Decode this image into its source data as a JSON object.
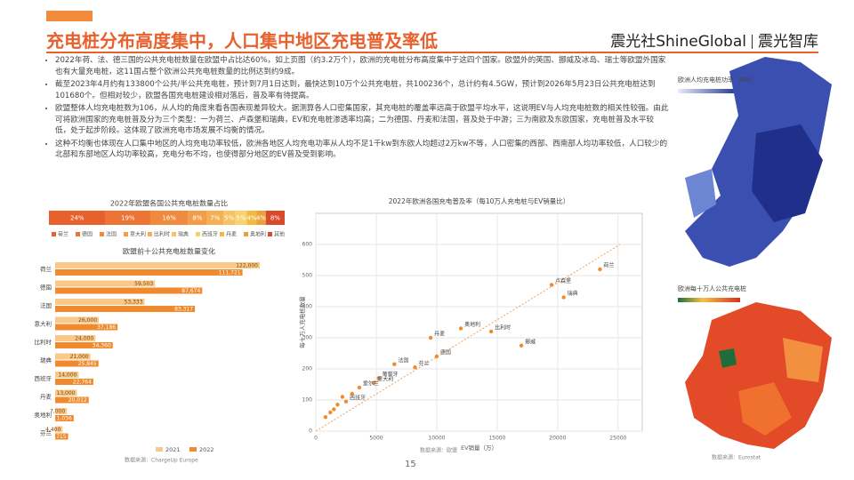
{
  "header": {
    "title": "充电桩分布高度集中，人口集中地区充电普及率低",
    "brand": "震光社ShineGlobal",
    "brand_sub": "震光智库"
  },
  "bullets": [
    "2022年荷、法、德三国的公共充电桩数量在欧盟中占比达60%，如上页图（约3.2万个），欧洲的充电桩分布高度集中于这四个国家。欧盟外的英国、挪威及冰岛、瑞士等欧盟外国家也有大量充电桩，这11国占整个欧洲公共充电桩数量的比例达到约9成。",
    "截至2023年4月约有133800个公共/半公共充电桩，预计到7月1日达到，最快达到10万个公共充电桩，共100236个，总计约有4.5GW，预计到2026年5月23日公共充电桩达到101680个。但相对较少，欧盟各国充电桩建设相对落后，普及率有待提高。",
    "欧盟整体人均充电桩数为106，从人均的角度来看各国表现差异较大。据测算各人口密集国家，其充电桩的覆盖率远高于欧盟平均水平，这说明EV与人均充电桩数的相关性较强。由此可将欧洲国家的充电桩普及分为三个类型：一为荷兰、卢森堡和瑞典，EV和充电桩渗透率均高；二为德国、丹麦和法国，普及处于中游；三为南欧及东欧国家，充电桩普及水平较低，处于起步阶段。这体现了欧洲充电市场发展不均衡的情况。",
    "这种不均衡也体现在人口集中地区的人均充电功率较低，欧洲各地区人均充电功率从人均不足1千kw到东欧人均超过2万kw不等，人口密集的西部、西南部人均功率较低，人口较少的北部和东部地区人均功率较高，充电分布不均，也使得部分地区的EV普及受到影响。"
  ],
  "share_chart": {
    "type": "stacked_bar",
    "title": "2022年欧盟各国公共充电桩数量占比",
    "categories": [
      "荷兰",
      "德国",
      "法国",
      "意大利",
      "比利时",
      "瑞典",
      "西班牙",
      "丹麦",
      "奥地利",
      "其他"
    ],
    "values": [
      24,
      19,
      16,
      8,
      7,
      5,
      5,
      4,
      4,
      8
    ],
    "value_labels": [
      "24%",
      "19%",
      "16%",
      "8%",
      "7%",
      "5%",
      "5%",
      "4%",
      "4%",
      "8%"
    ],
    "colors": [
      "#e8602c",
      "#ec7434",
      "#f08a3e",
      "#f39d4a",
      "#f5b055",
      "#f7c262",
      "#f9d06e",
      "#f2b840",
      "#e9a23a",
      "#d94a2a"
    ]
  },
  "bar_chart": {
    "type": "bar",
    "title": "欧盟前十公共充电桩数量变化",
    "categories": [
      "荷兰",
      "德国",
      "法国",
      "意大利",
      "比利时",
      "瑞典",
      "西班牙",
      "丹麦",
      "奥地利",
      "芬兰"
    ],
    "series": [
      {
        "name": "2021",
        "color": "#f9c98a",
        "values": [
          122000,
          59503,
          53333,
          26000,
          24000,
          21000,
          14000,
          13000,
          7000,
          4400
        ],
        "value_labels": [
          "122,000",
          "59,503",
          "53,333",
          "26,000",
          "24,000",
          "21,000",
          "14,000",
          "13,000",
          "7,000",
          "4,400"
        ]
      },
      {
        "name": "2022",
        "color": "#f08a2c",
        "values": [
          111721,
          87674,
          83317,
          37186,
          34360,
          25845,
          22764,
          20012,
          11036,
          7715
        ],
        "value_labels": [
          "111,721",
          "87,674",
          "83,317",
          "37,186",
          "34,360",
          "25,845",
          "22,764",
          "20,012",
          "11,036",
          "7,715"
        ]
      }
    ],
    "source": "数据来源：ChargeUp Europe"
  },
  "scatter": {
    "type": "scatter",
    "title": "2022年欧洲各国充电普及率（每10万人充电桩与EV销量比）",
    "x_label": "EV销量（万）",
    "y_label": "每十万人充电桩数量",
    "color": "#f08a2c",
    "x": [
      23500,
      19500,
      20500,
      12000,
      14500,
      9500,
      10000,
      17000,
      6500,
      8200,
      5200,
      4800,
      3600,
      2500,
      3000,
      1800,
      2200,
      1200,
      800,
      1500
    ],
    "y": [
      520,
      470,
      430,
      330,
      320,
      300,
      240,
      275,
      215,
      205,
      170,
      155,
      140,
      95,
      120,
      85,
      110,
      60,
      45,
      70
    ],
    "labels": [
      "荷兰",
      "卢森堡",
      "瑞典",
      "奥地利",
      "比利时",
      "丹麦",
      "德国",
      "挪威",
      "法国",
      "芬兰",
      "葡萄牙",
      "意大利",
      "爱尔兰",
      "西班牙",
      null,
      null,
      null,
      null,
      null,
      null
    ],
    "xlim": [
      0,
      27000
    ],
    "ylim": [
      0,
      700
    ],
    "xticks": [
      0,
      5000,
      10000,
      15000,
      20000,
      25000
    ],
    "yticks": [
      0,
      100,
      200,
      300,
      400,
      500,
      600
    ],
    "grid": true,
    "source": "数据来源：欧盟"
  },
  "map": {
    "title_top": "欧洲人均充电桩功率（kW）",
    "title_bottom": "欧洲每十万人公共充电桩",
    "source": "数据来源：Eurostat"
  },
  "page_number": "15"
}
